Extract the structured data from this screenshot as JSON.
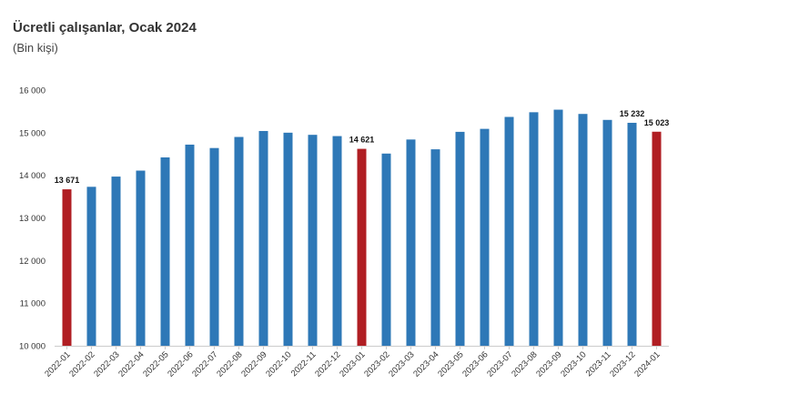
{
  "chart_data": {
    "type": "bar",
    "title": "Ücretli çalışanlar, Ocak 2024",
    "subtitle": "(Bin kişi)",
    "categories": [
      "2022-01",
      "2022-02",
      "2022-03",
      "2022-04",
      "2022-05",
      "2022-06",
      "2022-07",
      "2022-08",
      "2022-09",
      "2022-10",
      "2022-11",
      "2022-12",
      "2023-01",
      "2023-02",
      "2023-03",
      "2023-04",
      "2023-05",
      "2023-06",
      "2023-07",
      "2023-08",
      "2023-09",
      "2023-10",
      "2023-11",
      "2023-12",
      "2024-01"
    ],
    "values": [
      13671,
      13730,
      13970,
      14110,
      14420,
      14720,
      14640,
      14900,
      15040,
      15000,
      14950,
      14920,
      14621,
      14510,
      14840,
      14610,
      15020,
      15090,
      15370,
      15480,
      15540,
      15440,
      15300,
      15232,
      15023
    ],
    "highlighted": [
      "2022-01",
      "2023-01",
      "2024-01"
    ],
    "data_labels": {
      "2022-01": "13 671",
      "2023-01": "14 621",
      "2023-12": "15 232",
      "2024-01": "15 023"
    },
    "yticks": [
      10000,
      11000,
      12000,
      13000,
      14000,
      15000,
      16000
    ],
    "ytick_labels": [
      "10 000",
      "11 000",
      "12 000",
      "13 000",
      "14 000",
      "15 000",
      "16 000"
    ],
    "ylim": [
      10000,
      16000
    ],
    "xlabel": "",
    "ylabel": "",
    "colors": {
      "bar": "#2e78b7",
      "highlight": "#b01e23",
      "axis": "#cccccc"
    },
    "grid": false,
    "legend": "none"
  }
}
